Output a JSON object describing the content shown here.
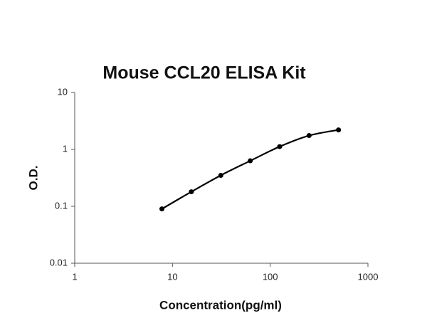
{
  "chart_data": {
    "type": "scatter",
    "title": "Mouse CCL20 ELISA Kit",
    "x_label": "Concentration(pg/ml)",
    "y_label": "O.D.",
    "x": [
      7.8,
      15.6,
      31.25,
      62.5,
      125,
      250,
      500
    ],
    "values": [
      0.09,
      0.18,
      0.35,
      0.63,
      1.12,
      1.75,
      2.2
    ],
    "color": "#000000",
    "line": true,
    "xscale": "log",
    "yscale": "log",
    "xlim": [
      1,
      1000
    ],
    "ylim": [
      0.01,
      10
    ],
    "xticks": [
      1,
      10,
      100,
      1000
    ],
    "yticks": [
      0.01,
      0.1,
      1,
      10
    ]
  }
}
